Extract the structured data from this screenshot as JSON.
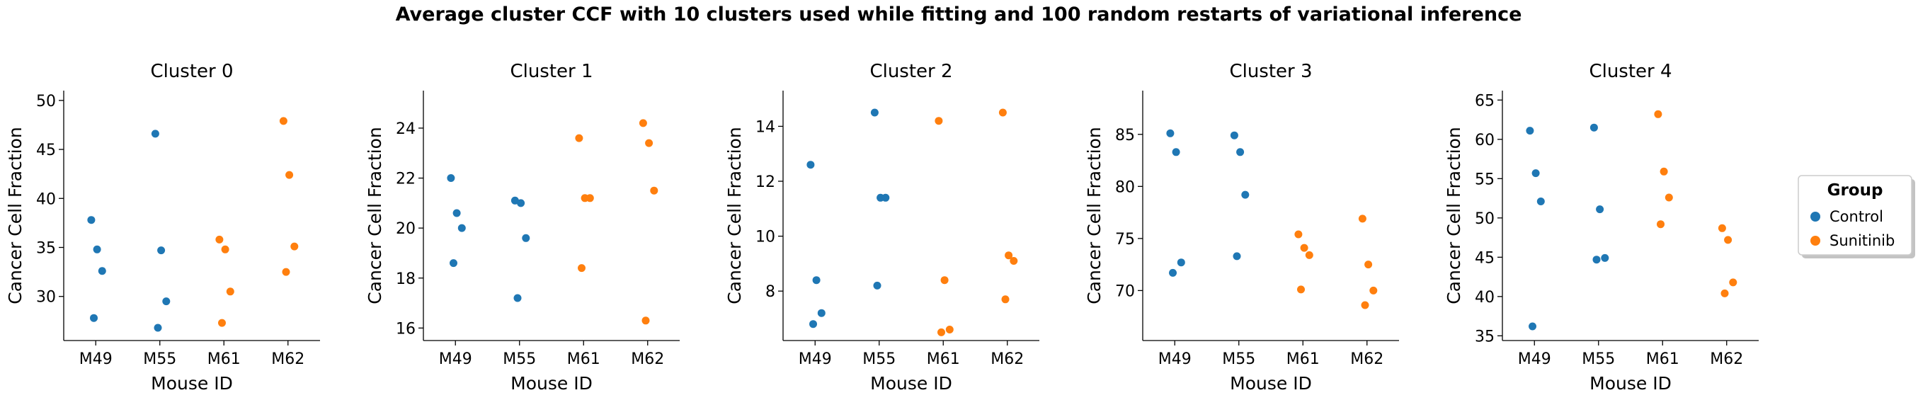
{
  "figure": {
    "suptitle": "Average cluster CCF with 10 clusters used while fitting and 100 random restarts of variational inference"
  },
  "legend": {
    "title": "Group",
    "entries": [
      {
        "label": "Control",
        "color": "#1f77b4"
      },
      {
        "label": "Sunitinib",
        "color": "#ff7f0e"
      }
    ],
    "placement": "right"
  },
  "chart_data": [
    {
      "type": "scatter",
      "title": "Cluster 0",
      "xlabel": "Mouse ID",
      "ylabel": "Cancer Cell Fraction",
      "categories": [
        "M49",
        "M55",
        "M61",
        "M62"
      ],
      "ylim": [
        25.5,
        51
      ],
      "yticks": [
        30,
        35,
        40,
        45,
        50
      ],
      "series": [
        {
          "name": "Control",
          "color": "#1f77b4",
          "points": [
            [
              "M49",
              37.8
            ],
            [
              "M49",
              34.8
            ],
            [
              "M49",
              32.6
            ],
            [
              "M49",
              27.8
            ],
            [
              "M55",
              46.6
            ],
            [
              "M55",
              34.7
            ],
            [
              "M55",
              29.5
            ],
            [
              "M55",
              26.8
            ]
          ]
        },
        {
          "name": "Sunitinib",
          "color": "#ff7f0e",
          "points": [
            [
              "M61",
              35.8
            ],
            [
              "M61",
              34.8
            ],
            [
              "M61",
              30.5
            ],
            [
              "M61",
              27.3
            ],
            [
              "M62",
              47.9
            ],
            [
              "M62",
              42.4
            ],
            [
              "M62",
              35.1
            ],
            [
              "M62",
              32.5
            ]
          ]
        }
      ]
    },
    {
      "type": "scatter",
      "title": "Cluster 1",
      "xlabel": "Mouse ID",
      "ylabel": "Cancer Cell Fraction",
      "categories": [
        "M49",
        "M55",
        "M61",
        "M62"
      ],
      "ylim": [
        15.5,
        25.5
      ],
      "yticks": [
        16,
        18,
        20,
        22,
        24
      ],
      "series": [
        {
          "name": "Control",
          "color": "#1f77b4",
          "points": [
            [
              "M49",
              22.0
            ],
            [
              "M49",
              20.6
            ],
            [
              "M49",
              20.0
            ],
            [
              "M49",
              18.6
            ],
            [
              "M55",
              21.1
            ],
            [
              "M55",
              21.0
            ],
            [
              "M55",
              19.6
            ],
            [
              "M55",
              17.2
            ]
          ]
        },
        {
          "name": "Sunitinib",
          "color": "#ff7f0e",
          "points": [
            [
              "M61",
              23.6
            ],
            [
              "M61",
              21.2
            ],
            [
              "M61",
              21.2
            ],
            [
              "M61",
              18.4
            ],
            [
              "M62",
              24.2
            ],
            [
              "M62",
              23.4
            ],
            [
              "M62",
              21.5
            ],
            [
              "M62",
              16.3
            ]
          ]
        }
      ]
    },
    {
      "type": "scatter",
      "title": "Cluster 2",
      "xlabel": "Mouse ID",
      "ylabel": "Cancer Cell Fraction",
      "categories": [
        "M49",
        "M55",
        "M61",
        "M62"
      ],
      "ylim": [
        6.2,
        15.3
      ],
      "yticks": [
        8,
        10,
        12,
        14
      ],
      "series": [
        {
          "name": "Control",
          "color": "#1f77b4",
          "points": [
            [
              "M49",
              12.6
            ],
            [
              "M49",
              8.4
            ],
            [
              "M49",
              7.2
            ],
            [
              "M49",
              6.8
            ],
            [
              "M55",
              14.5
            ],
            [
              "M55",
              11.4
            ],
            [
              "M55",
              11.4
            ],
            [
              "M55",
              8.2
            ]
          ]
        },
        {
          "name": "Sunitinib",
          "color": "#ff7f0e",
          "points": [
            [
              "M61",
              14.2
            ],
            [
              "M61",
              8.4
            ],
            [
              "M61",
              6.6
            ],
            [
              "M61",
              6.5
            ],
            [
              "M62",
              14.5
            ],
            [
              "M62",
              9.3
            ],
            [
              "M62",
              9.1
            ],
            [
              "M62",
              7.7
            ]
          ]
        }
      ]
    },
    {
      "type": "scatter",
      "title": "Cluster 3",
      "xlabel": "Mouse ID",
      "ylabel": "Cancer Cell Fraction",
      "categories": [
        "M49",
        "M55",
        "M61",
        "M62"
      ],
      "ylim": [
        65.2,
        89.2
      ],
      "yticks": [
        70,
        75,
        80,
        85
      ],
      "series": [
        {
          "name": "Control",
          "color": "#1f77b4",
          "points": [
            [
              "M49",
              85.1
            ],
            [
              "M49",
              83.3
            ],
            [
              "M49",
              72.7
            ],
            [
              "M49",
              71.7
            ],
            [
              "M55",
              84.9
            ],
            [
              "M55",
              83.3
            ],
            [
              "M55",
              79.2
            ],
            [
              "M55",
              73.3
            ]
          ]
        },
        {
          "name": "Sunitinib",
          "color": "#ff7f0e",
          "points": [
            [
              "M61",
              75.4
            ],
            [
              "M61",
              74.1
            ],
            [
              "M61",
              73.4
            ],
            [
              "M61",
              70.1
            ],
            [
              "M62",
              76.9
            ],
            [
              "M62",
              72.5
            ],
            [
              "M62",
              70.0
            ],
            [
              "M62",
              68.6
            ]
          ]
        }
      ]
    },
    {
      "type": "scatter",
      "title": "Cluster 4",
      "xlabel": "Mouse ID",
      "ylabel": "Cancer Cell Fraction",
      "categories": [
        "M49",
        "M55",
        "M61",
        "M62"
      ],
      "ylim": [
        34.4,
        66.2
      ],
      "yticks": [
        35,
        40,
        45,
        50,
        55,
        60,
        65
      ],
      "series": [
        {
          "name": "Control",
          "color": "#1f77b4",
          "points": [
            [
              "M49",
              61.1
            ],
            [
              "M49",
              55.7
            ],
            [
              "M49",
              52.1
            ],
            [
              "M49",
              36.2
            ],
            [
              "M55",
              61.5
            ],
            [
              "M55",
              51.1
            ],
            [
              "M55",
              44.9
            ],
            [
              "M55",
              44.7
            ]
          ]
        },
        {
          "name": "Sunitinib",
          "color": "#ff7f0e",
          "points": [
            [
              "M61",
              63.2
            ],
            [
              "M61",
              55.9
            ],
            [
              "M61",
              52.6
            ],
            [
              "M61",
              49.2
            ],
            [
              "M62",
              48.7
            ],
            [
              "M62",
              47.2
            ],
            [
              "M62",
              41.8
            ],
            [
              "M62",
              40.4
            ]
          ]
        }
      ]
    }
  ]
}
